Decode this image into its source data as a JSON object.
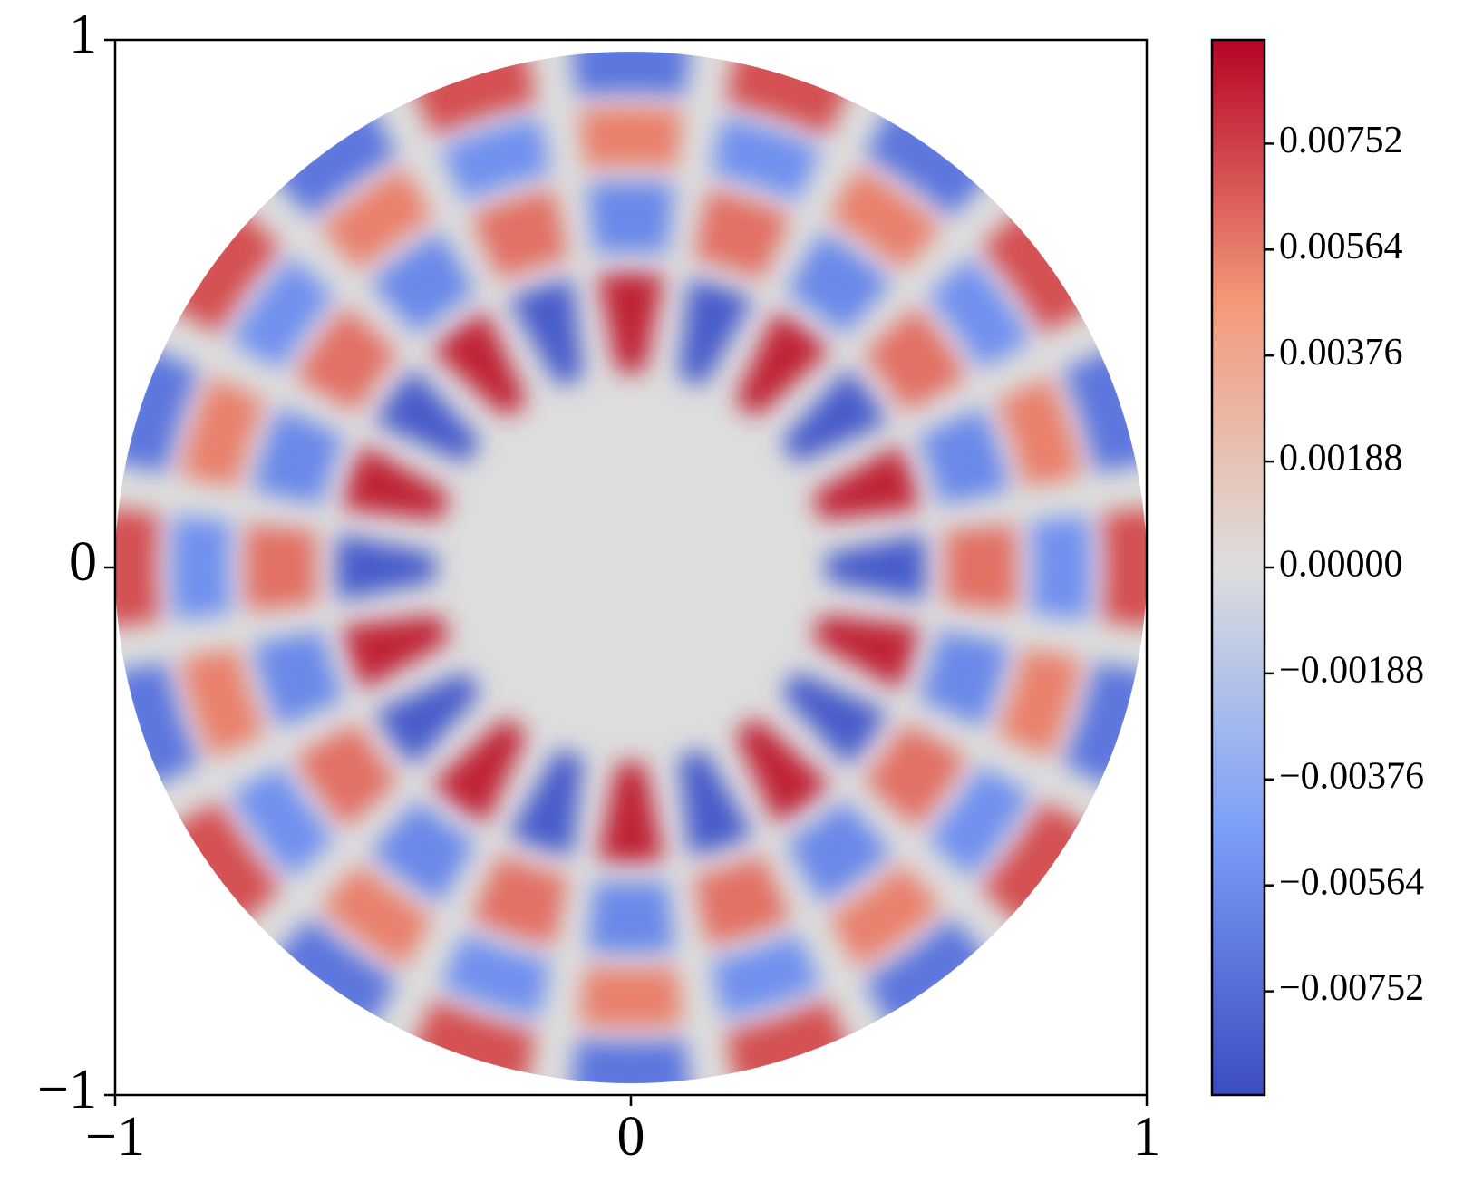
{
  "chart_data": {
    "type": "polar_heatmap",
    "xlim": [
      -1,
      1
    ],
    "ylim": [
      -1,
      1
    ],
    "xticks": [
      {
        "value": -1,
        "label": "−1"
      },
      0,
      1
    ],
    "yticks": [
      {
        "value": -1,
        "label": "−1"
      },
      0,
      1
    ],
    "r": [
      0.5,
      0.69,
      0.84,
      0.97
    ],
    "theta": [
      0,
      18,
      36,
      54,
      72,
      90,
      108,
      126,
      144,
      162,
      180,
      198,
      216,
      234,
      252,
      270,
      288,
      306,
      324,
      342
    ],
    "values": [
      [
        -0.0085,
        0.0085,
        -0.0085,
        0.0085,
        -0.0085,
        0.0085,
        -0.0085,
        0.0085,
        -0.0085,
        0.0085,
        -0.0085,
        0.0085,
        -0.0085,
        0.0085,
        -0.0085,
        0.0085,
        -0.0085,
        0.0085,
        -0.0085,
        0.0085
      ],
      [
        0.006,
        -0.006,
        0.006,
        -0.006,
        0.006,
        -0.006,
        0.006,
        -0.006,
        0.006,
        -0.006,
        0.006,
        -0.006,
        0.006,
        -0.006,
        0.006,
        -0.006,
        0.006,
        -0.006,
        0.006,
        -0.006
      ],
      [
        -0.0055,
        0.0055,
        -0.0055,
        0.0055,
        -0.0055,
        0.0055,
        -0.0055,
        0.0055,
        -0.0055,
        0.0055,
        -0.0055,
        0.0055,
        -0.0055,
        0.0055,
        -0.0055,
        0.0055,
        -0.0055,
        0.0055,
        -0.0055,
        0.0055
      ],
      [
        0.007,
        -0.007,
        0.007,
        -0.007,
        0.007,
        -0.007,
        0.007,
        -0.007,
        0.007,
        -0.007,
        0.007,
        -0.007,
        0.007,
        -0.007,
        0.007,
        -0.007,
        0.007,
        -0.007,
        0.007,
        -0.007
      ]
    ],
    "colormap": "coolwarm",
    "clim": [
      -0.00936,
      0.00936
    ],
    "colorbar_ticks": [
      {
        "value": -0.00752,
        "label": "−0.00752"
      },
      {
        "value": -0.00564,
        "label": "−0.00564"
      },
      {
        "value": -0.00376,
        "label": "−0.00376"
      },
      {
        "value": -0.00188,
        "label": "−0.00188"
      },
      {
        "value": 0,
        "label": "0.00000"
      },
      0.00188,
      0.00376,
      0.00564,
      0.00752
    ]
  }
}
